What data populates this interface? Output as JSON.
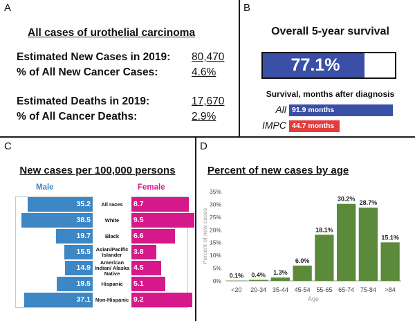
{
  "panels": {
    "a": {
      "letter": "A",
      "title": "All cases of urothelial carcinoma",
      "rows": [
        {
          "label": "Estimated New Cases in 2019:",
          "value": "80,470"
        },
        {
          "label": "% of All New Cancer Cases:",
          "value": "4.6%"
        },
        {
          "label": "Estimated Deaths in 2019:",
          "value": "17,670"
        },
        {
          "label": "% of All Cancer Deaths:",
          "value": "2.9%"
        }
      ]
    },
    "b": {
      "letter": "B",
      "title": "Overall 5-year survival",
      "survival_value": 77.1,
      "survival_text": "77.1%",
      "subtitle": "Survival, months after diagnosis",
      "bars": [
        {
          "category": "All",
          "months": 91.9,
          "label": "91.9 months",
          "color": "#3a50a6"
        },
        {
          "category": "IMPC",
          "months": 44.7,
          "label": "44.7 months",
          "color": "#e23d3d"
        }
      ]
    },
    "c": {
      "letter": "C",
      "title": "New cases per 100,000 persons",
      "male_label": "Male",
      "female_label": "Female",
      "male_color": "#3d87c5",
      "female_color": "#d6198a"
    },
    "d": {
      "letter": "D",
      "title": "Percent of new cases by age"
    }
  },
  "chart_data": [
    {
      "type": "bar",
      "title": "New cases per 100,000 persons",
      "orientation": "horizontal-butterfly",
      "categories": [
        "All races",
        "White",
        "Black",
        "Asian/Pacific Islander",
        "American Indian/ Alaska Native",
        "Hispanic",
        "Non-Hispanic"
      ],
      "series": [
        {
          "name": "Male",
          "values": [
            35.2,
            38.5,
            19.7,
            15.5,
            14.9,
            19.5,
            37.1
          ],
          "color": "#3d87c5"
        },
        {
          "name": "Female",
          "values": [
            8.7,
            9.5,
            6.6,
            3.8,
            4.5,
            5.1,
            9.2
          ],
          "color": "#d6198a"
        }
      ]
    },
    {
      "type": "bar",
      "title": "Percent of new cases by age",
      "xlabel": "Age",
      "ylabel": "Percent of new cases",
      "categories": [
        "<20",
        "20-34",
        "35-44",
        "45-54",
        "55-65",
        "65-74",
        "75-84",
        ">84"
      ],
      "values": [
        0.1,
        0.4,
        1.3,
        6.0,
        18.1,
        30.2,
        28.7,
        15.1
      ],
      "value_labels": [
        "0.1%",
        "0.4%",
        "1.3%",
        "6.0%",
        "18.1%",
        "30.2%",
        "28.7%",
        "15.1%"
      ],
      "ylim": [
        0,
        35
      ],
      "yticks": [
        "0%",
        "5%",
        "10%",
        "15%",
        "20%",
        "25%",
        "30%",
        "35%"
      ],
      "bar_color": "#5a8a3a",
      "grid": false
    }
  ]
}
